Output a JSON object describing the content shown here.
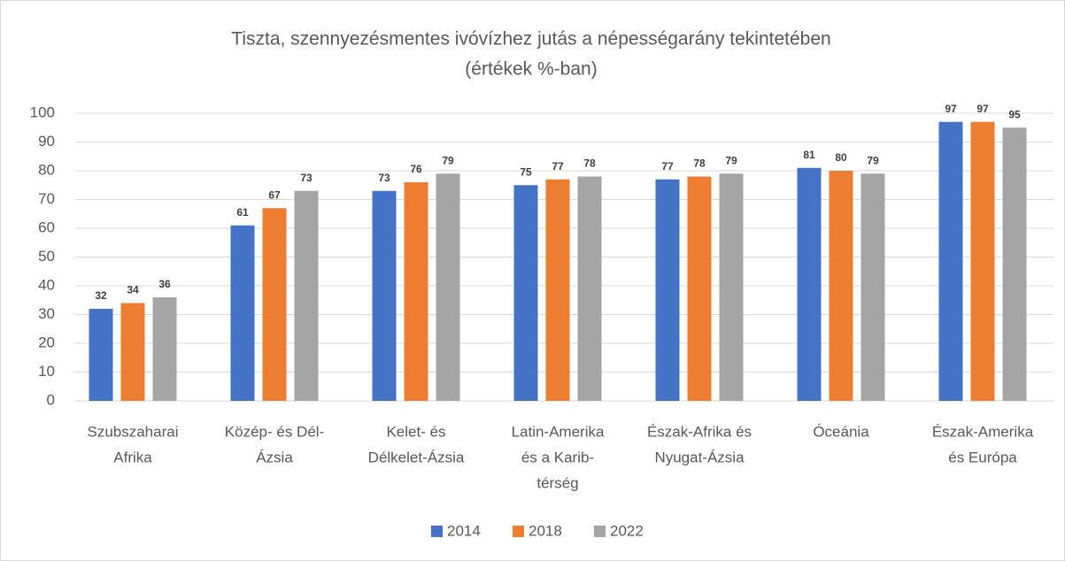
{
  "chart_data": {
    "type": "bar",
    "title": [
      "Tiszta, szennyezésmentes ivóvízhez jutás a népességarány tekintetében",
      "(értékek %-ban)"
    ],
    "categories": [
      [
        "Szubszaharai",
        "Afrika"
      ],
      [
        "Közép- és Dél-",
        "Ázsia"
      ],
      [
        "Kelet- és",
        "Délkelet-Ázsia"
      ],
      [
        "Latin-Amerika",
        "és a Karib-",
        "térség"
      ],
      [
        "Észak-Afrika és",
        "Nyugat-Ázsia"
      ],
      [
        "Óceánia"
      ],
      [
        "Észak-Amerika",
        "és Európa"
      ]
    ],
    "series": [
      {
        "name": "2014",
        "color": "#4472c4",
        "values": [
          32,
          61,
          73,
          75,
          77,
          81,
          97
        ]
      },
      {
        "name": "2018",
        "color": "#ed7d31",
        "values": [
          34,
          67,
          76,
          77,
          78,
          80,
          97
        ]
      },
      {
        "name": "2022",
        "color": "#a5a5a5",
        "values": [
          36,
          73,
          79,
          78,
          79,
          79,
          95
        ]
      }
    ],
    "ylim": [
      0,
      100
    ],
    "yticks": [
      0,
      10,
      20,
      30,
      40,
      50,
      60,
      70,
      80,
      90,
      100
    ],
    "grid": true,
    "legend": "bottom"
  }
}
